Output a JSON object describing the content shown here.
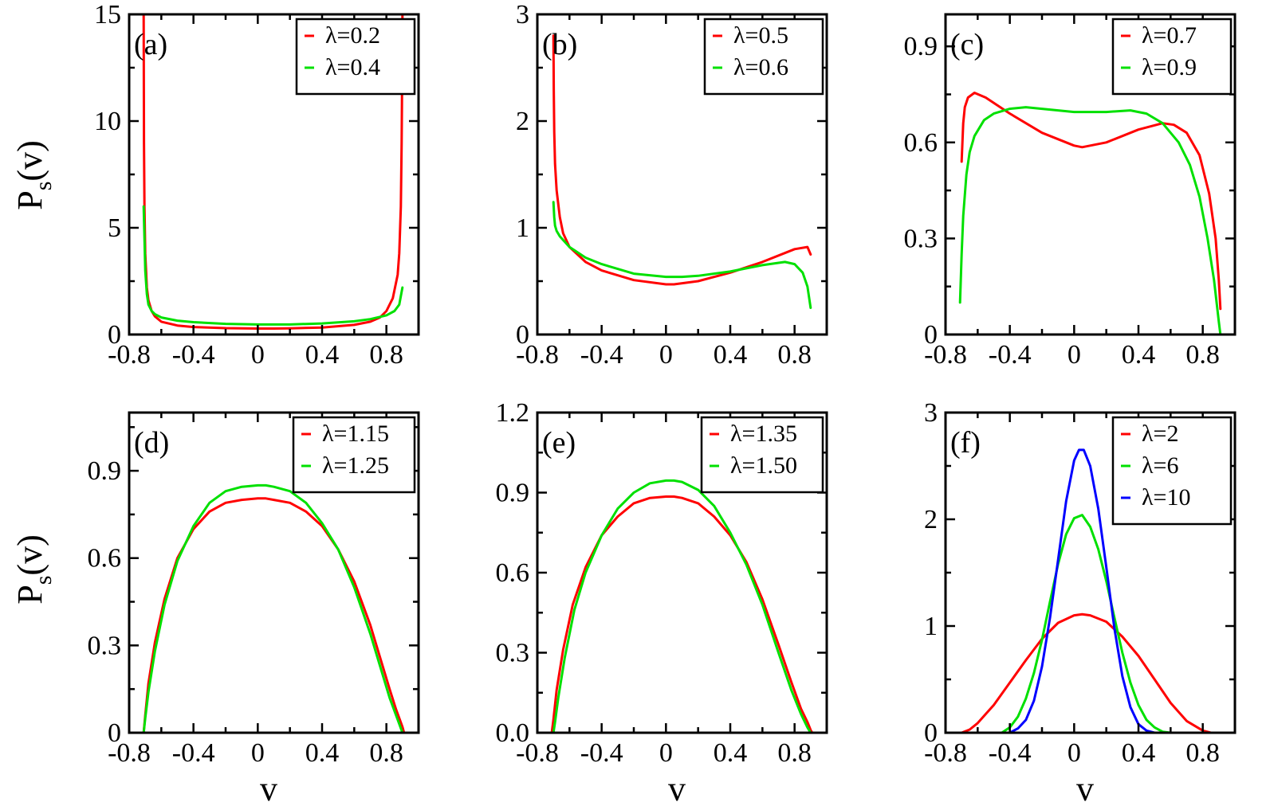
{
  "figure": {
    "xlabel": "v",
    "ylabel_main": "P",
    "ylabel_sub": "s",
    "ylabel_rest": "(v)"
  },
  "colors": {
    "red": "#ff0000",
    "green": "#00e000",
    "blue": "#0000ff"
  },
  "chart_data": [
    {
      "type": "line",
      "panel_label": "(a)",
      "xlim": [
        -0.8,
        1.0
      ],
      "ylim": [
        0,
        15
      ],
      "xticks": [
        "-0.8",
        "-0.4",
        "0",
        "0.4",
        "0.8"
      ],
      "xtick_values": [
        -0.8,
        -0.4,
        0,
        0.4,
        0.8
      ],
      "yticks": [
        "0",
        "5",
        "10",
        "15"
      ],
      "ytick_values": [
        0,
        5,
        10,
        15
      ],
      "series": [
        {
          "name": "λ=0.2",
          "color": "#ff0000",
          "x": [
            -0.71,
            -0.708,
            -0.705,
            -0.7,
            -0.69,
            -0.68,
            -0.66,
            -0.64,
            -0.6,
            -0.5,
            -0.4,
            -0.2,
            0,
            0.1,
            0.2,
            0.4,
            0.6,
            0.7,
            0.76,
            0.8,
            0.84,
            0.87,
            0.88,
            0.89,
            0.895,
            0.898,
            0.9
          ],
          "y": [
            15.0,
            9.0,
            6.0,
            3.8,
            2.2,
            1.6,
            1.1,
            0.85,
            0.6,
            0.42,
            0.35,
            0.3,
            0.28,
            0.28,
            0.29,
            0.33,
            0.45,
            0.6,
            0.8,
            1.1,
            1.7,
            2.8,
            3.8,
            6.0,
            9.0,
            12.0,
            15.0
          ]
        },
        {
          "name": "λ=0.4",
          "color": "#00e000",
          "x": [
            -0.71,
            -0.7,
            -0.69,
            -0.68,
            -0.66,
            -0.64,
            -0.6,
            -0.5,
            -0.4,
            -0.2,
            0,
            0.2,
            0.4,
            0.6,
            0.7,
            0.8,
            0.85,
            0.88,
            0.9
          ],
          "y": [
            6.0,
            3.0,
            1.9,
            1.4,
            1.1,
            0.95,
            0.8,
            0.65,
            0.58,
            0.5,
            0.47,
            0.47,
            0.52,
            0.62,
            0.72,
            0.9,
            1.1,
            1.4,
            2.2
          ]
        }
      ],
      "legend": {
        "position": "top-right"
      }
    },
    {
      "type": "line",
      "panel_label": "(b)",
      "xlim": [
        -0.8,
        1.0
      ],
      "ylim": [
        0,
        3
      ],
      "xticks": [
        "-0.8",
        "-0.4",
        "0",
        "0.4",
        "0.8"
      ],
      "xtick_values": [
        -0.8,
        -0.4,
        0,
        0.4,
        0.8
      ],
      "yticks": [
        "0",
        "1",
        "2",
        "3"
      ],
      "ytick_values": [
        0,
        1,
        2,
        3
      ],
      "series": [
        {
          "name": "λ=0.5",
          "color": "#ff0000",
          "x": [
            -0.7,
            -0.698,
            -0.695,
            -0.69,
            -0.68,
            -0.66,
            -0.64,
            -0.6,
            -0.5,
            -0.4,
            -0.2,
            0,
            0.05,
            0.2,
            0.4,
            0.6,
            0.8,
            0.88,
            0.9
          ],
          "y": [
            2.8,
            2.3,
            1.9,
            1.6,
            1.35,
            1.1,
            0.95,
            0.82,
            0.68,
            0.6,
            0.51,
            0.47,
            0.47,
            0.5,
            0.58,
            0.68,
            0.8,
            0.82,
            0.75
          ]
        },
        {
          "name": "λ=0.6",
          "color": "#00e000",
          "x": [
            -0.7,
            -0.695,
            -0.69,
            -0.68,
            -0.66,
            -0.6,
            -0.5,
            -0.4,
            -0.2,
            0,
            0.1,
            0.2,
            0.4,
            0.6,
            0.74,
            0.8,
            0.85,
            0.88,
            0.9
          ],
          "y": [
            1.24,
            1.1,
            1.02,
            0.97,
            0.92,
            0.82,
            0.72,
            0.66,
            0.57,
            0.54,
            0.54,
            0.55,
            0.59,
            0.65,
            0.68,
            0.66,
            0.58,
            0.45,
            0.25
          ]
        }
      ],
      "legend": {
        "position": "top-right"
      }
    },
    {
      "type": "line",
      "panel_label": "(c)",
      "xlim": [
        -0.8,
        1.0
      ],
      "ylim": [
        0,
        1.0
      ],
      "xticks": [
        "-0.8",
        "-0.4",
        "0",
        "0.4",
        "0.8"
      ],
      "xtick_values": [
        -0.8,
        -0.4,
        0,
        0.4,
        0.8
      ],
      "yticks": [
        "0",
        "0.3",
        "0.6",
        "0.9"
      ],
      "ytick_values": [
        0,
        0.3,
        0.6,
        0.9
      ],
      "series": [
        {
          "name": "λ=0.7",
          "color": "#ff0000",
          "x": [
            -0.7,
            -0.69,
            -0.68,
            -0.66,
            -0.62,
            -0.55,
            -0.4,
            -0.2,
            0,
            0.05,
            0.2,
            0.4,
            0.55,
            0.62,
            0.7,
            0.78,
            0.84,
            0.88,
            0.9,
            0.91
          ],
          "y": [
            0.54,
            0.66,
            0.71,
            0.74,
            0.755,
            0.74,
            0.69,
            0.63,
            0.59,
            0.585,
            0.6,
            0.64,
            0.66,
            0.655,
            0.63,
            0.56,
            0.44,
            0.3,
            0.17,
            0.08
          ]
        },
        {
          "name": "λ=0.9",
          "color": "#00e000",
          "x": [
            -0.71,
            -0.7,
            -0.69,
            -0.67,
            -0.65,
            -0.62,
            -0.56,
            -0.5,
            -0.4,
            -0.3,
            -0.2,
            0,
            0.2,
            0.35,
            0.45,
            0.55,
            0.65,
            0.72,
            0.78,
            0.83,
            0.87,
            0.9,
            0.91
          ],
          "y": [
            0.1,
            0.25,
            0.37,
            0.5,
            0.57,
            0.62,
            0.67,
            0.69,
            0.705,
            0.71,
            0.705,
            0.695,
            0.695,
            0.7,
            0.69,
            0.66,
            0.6,
            0.53,
            0.43,
            0.3,
            0.17,
            0.04,
            0.0
          ]
        }
      ],
      "legend": {
        "position": "top-right"
      }
    },
    {
      "type": "line",
      "panel_label": "(d)",
      "xlim": [
        -0.8,
        1.0
      ],
      "ylim": [
        0,
        1.1
      ],
      "xticks": [
        "-0.8",
        "-0.4",
        "0",
        "0.4",
        "0.8"
      ],
      "xtick_values": [
        -0.8,
        -0.4,
        0,
        0.4,
        0.8
      ],
      "yticks": [
        "0",
        "0.3",
        "0.6",
        "0.9"
      ],
      "ytick_values": [
        0,
        0.3,
        0.6,
        0.9
      ],
      "series": [
        {
          "name": "λ=1.15",
          "color": "#ff0000",
          "x": [
            -0.71,
            -0.7,
            -0.68,
            -0.64,
            -0.58,
            -0.5,
            -0.4,
            -0.3,
            -0.2,
            -0.1,
            0,
            0.05,
            0.1,
            0.2,
            0.3,
            0.4,
            0.5,
            0.6,
            0.7,
            0.76,
            0.82,
            0.86,
            0.88,
            0.9,
            0.91
          ],
          "y": [
            0.0,
            0.06,
            0.17,
            0.31,
            0.46,
            0.6,
            0.7,
            0.76,
            0.79,
            0.8,
            0.805,
            0.805,
            0.8,
            0.79,
            0.76,
            0.71,
            0.63,
            0.52,
            0.37,
            0.26,
            0.15,
            0.08,
            0.05,
            0.02,
            0.0
          ]
        },
        {
          "name": "λ=1.25",
          "color": "#00e000",
          "x": [
            -0.71,
            -0.7,
            -0.68,
            -0.64,
            -0.58,
            -0.5,
            -0.4,
            -0.3,
            -0.2,
            -0.1,
            0,
            0.05,
            0.1,
            0.2,
            0.3,
            0.4,
            0.5,
            0.6,
            0.7,
            0.76,
            0.82,
            0.86,
            0.88,
            0.9
          ],
          "y": [
            0.0,
            0.05,
            0.14,
            0.28,
            0.44,
            0.59,
            0.71,
            0.79,
            0.83,
            0.845,
            0.85,
            0.85,
            0.845,
            0.83,
            0.79,
            0.72,
            0.63,
            0.5,
            0.34,
            0.23,
            0.12,
            0.06,
            0.03,
            0.0
          ]
        }
      ],
      "legend": {
        "position": "top-right"
      }
    },
    {
      "type": "line",
      "panel_label": "(e)",
      "xlim": [
        -0.8,
        1.0
      ],
      "ylim": [
        0,
        1.2
      ],
      "xticks": [
        "-0.8",
        "-0.4",
        "0",
        "0.4",
        "0.8"
      ],
      "xtick_values": [
        -0.8,
        -0.4,
        0,
        0.4,
        0.8
      ],
      "yticks": [
        "0.0",
        "0.3",
        "0.6",
        "0.9",
        "1.2"
      ],
      "ytick_values": [
        0,
        0.3,
        0.6,
        0.9,
        1.2
      ],
      "series": [
        {
          "name": "λ=1.35",
          "color": "#ff0000",
          "x": [
            -0.71,
            -0.7,
            -0.68,
            -0.64,
            -0.58,
            -0.5,
            -0.4,
            -0.3,
            -0.2,
            -0.1,
            0,
            0.05,
            0.1,
            0.2,
            0.3,
            0.4,
            0.5,
            0.6,
            0.7,
            0.78,
            0.84,
            0.88,
            0.9,
            0.91
          ],
          "y": [
            0.0,
            0.05,
            0.16,
            0.31,
            0.48,
            0.62,
            0.74,
            0.81,
            0.86,
            0.88,
            0.885,
            0.885,
            0.88,
            0.86,
            0.81,
            0.74,
            0.64,
            0.5,
            0.33,
            0.19,
            0.09,
            0.04,
            0.01,
            0.0
          ]
        },
        {
          "name": "λ=1.50",
          "color": "#00e000",
          "x": [
            -0.7,
            -0.69,
            -0.67,
            -0.63,
            -0.57,
            -0.5,
            -0.4,
            -0.3,
            -0.2,
            -0.1,
            0,
            0.05,
            0.1,
            0.2,
            0.3,
            0.4,
            0.5,
            0.6,
            0.7,
            0.78,
            0.84,
            0.88,
            0.9
          ],
          "y": [
            0.0,
            0.04,
            0.13,
            0.28,
            0.46,
            0.6,
            0.74,
            0.84,
            0.9,
            0.935,
            0.945,
            0.945,
            0.94,
            0.91,
            0.85,
            0.75,
            0.63,
            0.48,
            0.3,
            0.16,
            0.07,
            0.02,
            0.0
          ]
        }
      ],
      "legend": {
        "position": "top-right"
      }
    },
    {
      "type": "line",
      "panel_label": "(f)",
      "xlim": [
        -0.8,
        1.0
      ],
      "ylim": [
        0,
        3
      ],
      "xticks": [
        "-0.8",
        "-0.4",
        "0",
        "0.4",
        "0.8"
      ],
      "xtick_values": [
        -0.8,
        -0.4,
        0,
        0.4,
        0.8
      ],
      "yticks": [
        "0",
        "1",
        "2",
        "3"
      ],
      "ytick_values": [
        0,
        1,
        2,
        3
      ],
      "series": [
        {
          "name": "λ=2",
          "color": "#ff0000",
          "x": [
            -0.7,
            -0.65,
            -0.6,
            -0.5,
            -0.4,
            -0.3,
            -0.2,
            -0.1,
            0,
            0.05,
            0.1,
            0.2,
            0.3,
            0.4,
            0.5,
            0.6,
            0.7,
            0.8,
            0.85
          ],
          "y": [
            0.0,
            0.03,
            0.09,
            0.26,
            0.47,
            0.68,
            0.88,
            1.03,
            1.1,
            1.11,
            1.1,
            1.04,
            0.9,
            0.72,
            0.5,
            0.28,
            0.11,
            0.02,
            0.0
          ]
        },
        {
          "name": "λ=6",
          "color": "#00e000",
          "x": [
            -0.45,
            -0.4,
            -0.35,
            -0.3,
            -0.25,
            -0.2,
            -0.15,
            -0.1,
            -0.05,
            0,
            0.05,
            0.1,
            0.15,
            0.2,
            0.25,
            0.3,
            0.35,
            0.4,
            0.45,
            0.5,
            0.55,
            0.6
          ],
          "y": [
            0.0,
            0.05,
            0.15,
            0.32,
            0.56,
            0.87,
            1.23,
            1.58,
            1.86,
            2.01,
            2.04,
            1.93,
            1.72,
            1.42,
            1.08,
            0.75,
            0.47,
            0.26,
            0.12,
            0.05,
            0.01,
            0.0
          ]
        },
        {
          "name": "λ=10",
          "color": "#0000ff",
          "x": [
            -0.4,
            -0.35,
            -0.3,
            -0.25,
            -0.2,
            -0.15,
            -0.1,
            -0.05,
            0,
            0.03,
            0.06,
            0.1,
            0.15,
            0.2,
            0.25,
            0.3,
            0.35,
            0.4,
            0.45,
            0.5
          ],
          "y": [
            0.0,
            0.04,
            0.12,
            0.3,
            0.62,
            1.08,
            1.62,
            2.17,
            2.55,
            2.65,
            2.65,
            2.5,
            2.1,
            1.55,
            0.98,
            0.53,
            0.24,
            0.08,
            0.02,
            0.0
          ]
        }
      ],
      "legend": {
        "position": "top-right"
      }
    }
  ]
}
